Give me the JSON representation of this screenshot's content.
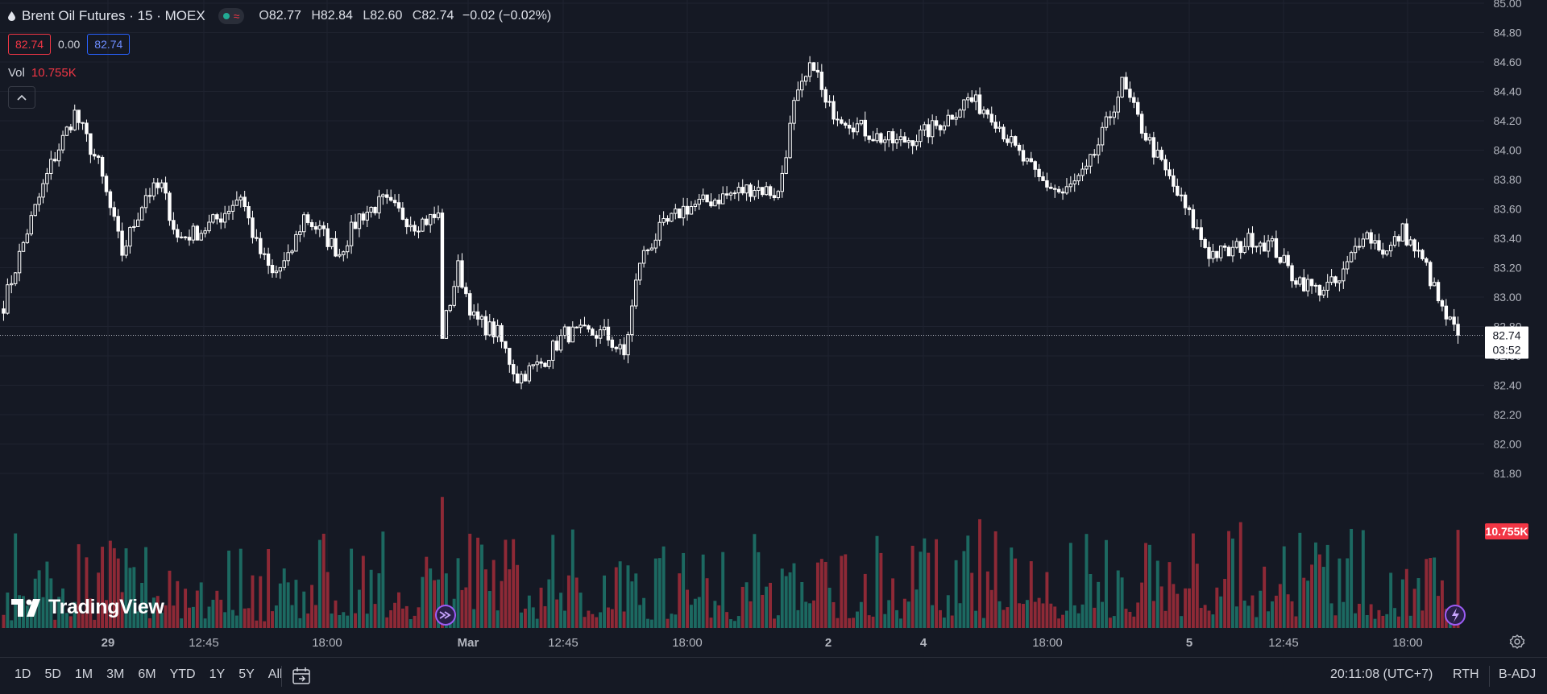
{
  "header": {
    "symbol_title": "Brent Oil Futures · 15 · MOEX",
    "ohlc": {
      "open_label": "O",
      "open": "82.77",
      "high_label": "H",
      "high": "82.84",
      "low_label": "L",
      "low": "82.60",
      "close_label": "C",
      "close": "82.74",
      "change": "−0.02 (−0.02%)"
    },
    "bid": "82.74",
    "spread": "0.00",
    "ask": "82.74",
    "vol_label": "Vol",
    "vol_value": "10.755K"
  },
  "logo_text": "TradingView",
  "bottom": {
    "ranges": [
      "1D",
      "5D",
      "1M",
      "3M",
      "6M",
      "YTD",
      "1Y",
      "5Y",
      "All"
    ],
    "clock": "20:11:08 (UTC+7)",
    "session": "RTH",
    "adjust": "B-ADJ"
  },
  "colors": {
    "background": "#151924",
    "up_candle": "#ffffff",
    "down_candle": "#ffffff",
    "volume_up": "#22ab94",
    "volume_down": "#f23645",
    "grid": "#1f2330"
  },
  "chart_data": {
    "type": "candlestick",
    "interval": "15",
    "y_axis_ticks": [
      "85.00",
      "84.80",
      "84.60",
      "84.40",
      "84.20",
      "84.00",
      "83.80",
      "83.60",
      "83.40",
      "83.20",
      "83.00",
      "82.80",
      "82.60",
      "82.40",
      "82.20",
      "82.00",
      "81.80"
    ],
    "ylim": [
      81.6,
      85.0
    ],
    "x_tick_labels": [
      "29",
      "12:45",
      "18:00",
      "Mar",
      "12:45",
      "18:00",
      "2",
      "4",
      "18:00",
      "5",
      "12:45",
      "18:00"
    ],
    "last_price": "82.74",
    "countdown": "03:52",
    "volume_label": "10.755K",
    "price_path": [
      [
        0,
        82.95
      ],
      [
        6,
        83.45
      ],
      [
        12,
        83.9
      ],
      [
        18,
        84.25
      ],
      [
        24,
        83.9
      ],
      [
        30,
        83.3
      ],
      [
        36,
        83.7
      ],
      [
        40,
        83.75
      ],
      [
        44,
        83.4
      ],
      [
        50,
        83.45
      ],
      [
        55,
        83.55
      ],
      [
        60,
        83.7
      ],
      [
        64,
        83.35
      ],
      [
        68,
        83.15
      ],
      [
        72,
        83.25
      ],
      [
        76,
        83.55
      ],
      [
        80,
        83.45
      ],
      [
        85,
        83.3
      ],
      [
        90,
        83.55
      ],
      [
        96,
        83.65
      ],
      [
        104,
        83.5
      ],
      [
        110,
        83.55
      ],
      [
        111,
        82.75
      ],
      [
        115,
        83.2
      ],
      [
        119,
        82.85
      ],
      [
        125,
        82.75
      ],
      [
        130,
        82.45
      ],
      [
        136,
        82.55
      ],
      [
        142,
        82.75
      ],
      [
        147,
        82.75
      ],
      [
        152,
        82.75
      ],
      [
        157,
        82.6
      ],
      [
        161,
        83.25
      ],
      [
        166,
        83.45
      ],
      [
        172,
        83.6
      ],
      [
        178,
        83.65
      ],
      [
        184,
        83.7
      ],
      [
        190,
        83.75
      ],
      [
        196,
        83.7
      ],
      [
        200,
        84.3
      ],
      [
        205,
        84.6
      ],
      [
        208,
        84.3
      ],
      [
        214,
        84.2
      ],
      [
        220,
        84.1
      ],
      [
        226,
        84.05
      ],
      [
        232,
        84.1
      ],
      [
        238,
        84.2
      ],
      [
        244,
        84.35
      ],
      [
        250,
        84.25
      ],
      [
        256,
        84.0
      ],
      [
        262,
        83.8
      ],
      [
        268,
        83.7
      ],
      [
        274,
        83.85
      ],
      [
        278,
        84.1
      ],
      [
        283,
        84.45
      ],
      [
        288,
        84.15
      ],
      [
        292,
        83.95
      ],
      [
        296,
        83.75
      ],
      [
        300,
        83.55
      ],
      [
        305,
        83.3
      ],
      [
        310,
        83.3
      ],
      [
        316,
        83.4
      ],
      [
        321,
        83.35
      ],
      [
        326,
        83.15
      ],
      [
        332,
        83.05
      ],
      [
        338,
        83.1
      ],
      [
        344,
        83.45
      ],
      [
        350,
        83.3
      ],
      [
        354,
        83.45
      ],
      [
        360,
        83.2
      ],
      [
        364,
        82.9
      ],
      [
        368,
        82.74
      ]
    ]
  }
}
